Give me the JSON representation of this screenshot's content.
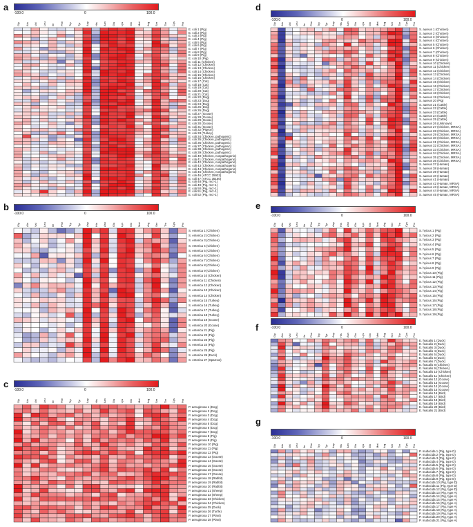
{
  "colorbar": {
    "min": "-100.0",
    "mid": "0",
    "max": "100.0",
    "low_color": "#2b2f96",
    "mid_color": "#ffffff",
    "high_color": "#e41a1c"
  },
  "panels": [
    {
      "label": "a",
      "columns": [
        "Gly",
        "Ala",
        "Val",
        "Leu",
        "Ile",
        "Phe",
        "Trp",
        "Tyr",
        "Asp",
        "His",
        "Asn",
        "Glu",
        "Lys",
        "Gln",
        "Met",
        "Arg",
        "Ser",
        "Thr",
        "Cys",
        "Pro"
      ],
      "rows": [
        "E. coli 1 (Pig)",
        "E. coli 2 (Pig)",
        "E. coli 3 (Pig)",
        "E. coli 4 (Pig)",
        "E. coli 5 (Pig)",
        "E. coli 6 (Pig)",
        "E. coli 7 (Pig)",
        "E. coli 8 (Pig)",
        "E. coli 9 (Pig)",
        "E. coli 10 (Pig)",
        "E. coli 11 (Chicken)",
        "E. coli 12 (Chicken)",
        "E. coli 13 (Chicken)",
        "E. coli 14 (Chicken)",
        "E. coli 15 (Chicken)",
        "E. coli 16 (Chicken)",
        "E. coli 17 (Cat)",
        "E. coli 18 (Cat)",
        "E. coli 19 (Cat)",
        "E. coli 20 (Cat)",
        "E. coli 21 (Cat)",
        "E. coli 22 (Dog)",
        "E. coli 23 (Dog)",
        "E. coli 24 (Dog)",
        "E. coli 25 (Dog)",
        "E. coli 26 (Dog)",
        "E. coli 27 (Goose)",
        "E. coli 28 (Goose)",
        "E. coli 29 (Goose)",
        "E. coli 30 (Goose)",
        "E. coli 31 (Goose)",
        "E. coli 32 (Pigeon)",
        "E. coli 33 (Turkey)",
        "E. coli 34 (Chicken, pathogenic)",
        "E. coli 35 (Chicken, pathogenic)",
        "E. coli 36 (Chicken, pathogenic)",
        "E. coli 37 (Chicken, pathogenic)",
        "E. coli 38 (Chicken, pathogenic)",
        "E. coli 39 (Chicken, pathogenic)",
        "E. coli 40 (Chicken, nonpathogenic)",
        "E. coli 41 (Chicken, nonpathogenic)",
        "E. coli 42 (Chicken, nonpathogenic)",
        "E. coli 43 (Chicken, nonpathogenic)",
        "E. coli 44 (Chicken, nonpathogenic)",
        "E. coli 45 (Chicken, nonpathogenic)",
        "E. coli 46 (ATCC 25922)",
        "E. coli 47 (ATCC 35150)",
        "E. coli 48 (Pig, mcr-1)",
        "E. coli 49 (Pig, mcr-1)",
        "E. coli 50 (Pig, mcr-1)",
        "E. coli 51 (Pig, mcr-1)",
        "E. coli 52 (Pig, mcr-1)"
      ],
      "col_means": [
        18,
        6,
        1,
        0,
        0,
        0,
        0,
        2,
        88,
        -28,
        92,
        92,
        92,
        92,
        14,
        30,
        86,
        55,
        -5,
        40
      ]
    },
    {
      "label": "b",
      "columns": [
        "Gly",
        "Ala",
        "Val",
        "Leu",
        "Ile",
        "Phe",
        "Trp",
        "Tyr",
        "Asp",
        "His",
        "Asn",
        "Glu",
        "Lys",
        "Gln",
        "Met",
        "Arg",
        "Ser",
        "Thr",
        "Cys",
        "Pro"
      ],
      "rows": [
        "S. enterica 1 (Chicken)",
        "S. enterica 2 (Chicken)",
        "S. enterica 3 (Chicken)",
        "S. enterica 4 (Chicken)",
        "S. enterica 5 (Chicken)",
        "S. enterica 6 (Chicken)",
        "S. enterica 7 (Chicken)",
        "S. enterica 8 (Chicken)",
        "S. enterica 9 (Chicken)",
        "S. enterica 10 (Chicken)",
        "S. enterica 11 (Chicken)",
        "S. enterica 12 (Chicken)",
        "S. enterica 13 (Chicken)",
        "S. enterica 14 (Chicken)",
        "S. enterica 15 (Turkey)",
        "S. enterica 16 (Turkey)",
        "S. enterica 17 (Turkey)",
        "S. enterica 18 (Turkey)",
        "S. enterica 19 (Goose)",
        "S. enterica 20 (Goose)",
        "S. enterica 21 (Pig)",
        "S. enterica 22 (Pig)",
        "S. enterica 23 (Pig)",
        "S. enterica 24 (Pig)",
        "S. enterica 25 (Pig)",
        "S. enterica 26 (Duck)",
        "S. enterica 27 (Sparrow)"
      ],
      "col_means": [
        8,
        -10,
        0,
        0,
        0,
        0,
        0,
        0,
        92,
        0,
        92,
        0,
        92,
        92,
        0,
        35,
        75,
        35,
        -45,
        20
      ]
    },
    {
      "label": "c",
      "columns": [
        "Gly",
        "Ala",
        "Val",
        "Leu",
        "Ile",
        "Phe",
        "Trp",
        "Tyr",
        "Asp",
        "His",
        "Asn",
        "Glu",
        "Lys",
        "Gln",
        "Met",
        "Arg",
        "Ser",
        "Thr",
        "Cys",
        "Pro"
      ],
      "rows": [
        "P. aeruginosa 1 (Dog)",
        "P. aeruginosa 2 (Dog)",
        "P. aeruginosa 3 (Dog)",
        "P. aeruginosa 4 (Dog)",
        "P. aeruginosa 5 (Dog)",
        "P. aeruginosa 6 (Dog)",
        "P. aeruginosa 7 (Dog)",
        "P. aeruginosa 8 (Pig)",
        "P. aeruginosa 9 (Pig)",
        "P. aeruginosa 10 (Pig)",
        "P. aeruginosa 11 (Pig)",
        "P. aeruginosa 12 (Pig)",
        "P. aeruginosa 13 (Goose)",
        "P. aeruginosa 14 (Goose)",
        "P. aeruginosa 15 (Goose)",
        "P. aeruginosa 16 (Goose)",
        "P. aeruginosa 17 (Goose)",
        "P. aeruginosa 18 (Rabbit)",
        "P. aeruginosa 19 (Rabbit)",
        "P. aeruginosa 20 (Rabbit)",
        "P. aeruginosa 21 (Sheep)",
        "P. aeruginosa 22 (Sheep)",
        "P. aeruginosa 23 (Chicken)",
        "P. aeruginosa 24 (Chicken)",
        "P. aeruginosa 25 (Duck)",
        "P. aeruginosa 26 (Turtle)",
        "P. aeruginosa 27 (Plant)",
        "P. aeruginosa 28 (Plant)"
      ],
      "col_means": [
        72,
        45,
        60,
        55,
        48,
        40,
        38,
        42,
        55,
        50,
        55,
        52,
        45,
        58,
        40,
        60,
        70,
        62,
        45,
        65
      ]
    },
    {
      "label": "d",
      "columns": [
        "Gly",
        "Ala",
        "Val",
        "Leu",
        "Ile",
        "Phe",
        "Trp",
        "Tyr",
        "Asp",
        "His",
        "Asn",
        "Glu",
        "Lys",
        "Gln",
        "Met",
        "Arg",
        "Ser",
        "Thr",
        "Cys",
        "Pro"
      ],
      "rows": [
        "S. aureus 1 (Chicken)",
        "S. aureus 2 (Chicken)",
        "S. aureus 3 (Chicken)",
        "S. aureus 4 (Chicken)",
        "S. aureus 5 (Chicken)",
        "S. aureus 6 (Chicken)",
        "S. aureus 7 (Chicken)",
        "S. aureus 8 (Chicken)",
        "S. aureus 9 (Chicken)",
        "S. aureus 10 (Chicken)",
        "S. aureus 11 (Chicken)",
        "S. aureus 12 (Chicken)",
        "S. aureus 13 (Chicken)",
        "S. aureus 14 (Chicken)",
        "S. aureus 15 (Chicken)",
        "S. aureus 16 (Chicken)",
        "S. aureus 17 (Chicken)",
        "S. aureus 18 (Chicken)",
        "S. aureus 19 (Chicken)",
        "S. aureus 20 (Pig)",
        "S. aureus 21 (Cattle)",
        "S. aureus 22 (Cattle)",
        "S. aureus 23 (Cattle)",
        "S. aureus 24 (Cattle)",
        "S. aureus 25 (Cattle)",
        "S. aureus 26 (Unknown)",
        "S. aureus 27 (Chicken, MRSA)",
        "S. aureus 28 (Chicken, MRSA)",
        "S. aureus 29 (Chicken, MRSA)",
        "S. aureus 30 (Chicken, MRSA)",
        "S. aureus 31 (Chicken, MRSA)",
        "S. aureus 32 (Chicken, MRSA)",
        "S. aureus 33 (Chicken, MRSA)",
        "S. aureus 34 (Chicken, MRSA)",
        "S. aureus 35 (Chicken, MRSA)",
        "S. aureus 36 (Chicken, MRSA)",
        "S. aureus 37 (Human)",
        "S. aureus 38 (Human)",
        "S. aureus 39 (Human)",
        "S. aureus 40 (Human)",
        "S. aureus 41 (Human)",
        "S. aureus 42 (Human, MRSA)",
        "S. aureus 43 (Human, MRSA)",
        "S. aureus 44 (Human, MRSA)",
        "S. aureus 45 (Human, MRSA)"
      ],
      "col_means": [
        55,
        -88,
        2,
        0,
        0,
        0,
        0,
        8,
        30,
        6,
        60,
        35,
        6,
        50,
        2,
        35,
        80,
        92,
        -30,
        55
      ]
    },
    {
      "label": "e",
      "columns": [
        "Gly",
        "Ala",
        "Val",
        "Leu",
        "Ile",
        "Phe",
        "Trp",
        "Tyr",
        "Asp",
        "His",
        "Asn",
        "Glu",
        "Lys",
        "Gln",
        "Met",
        "Arg",
        "Ser",
        "Thr",
        "Cys",
        "Pro"
      ],
      "rows": [
        "S. hyicus 1 (Pig)",
        "S. hyicus 2 (Pig)",
        "S. hyicus 3 (Pig)",
        "S. hyicus 4 (Pig)",
        "S. hyicus 5 (Pig)",
        "S. hyicus 6 (Pig)",
        "S. hyicus 7 (Pig)",
        "S. hyicus 8 (Pig)",
        "S. hyicus 9 (Pig)",
        "S. hyicus 10 (Pig)",
        "S. hyicus 11 (Pig)",
        "S. hyicus 12 (Pig)",
        "S. hyicus 13 (Pig)",
        "S. hyicus 14 (Pig)",
        "S. hyicus 15 (Pig)",
        "S. hyicus 16 (Pig)",
        "S. hyicus 17 (Pig)",
        "S. hyicus 18 (Pig)",
        "S. hyicus 19 (Pig)"
      ],
      "col_means": [
        70,
        -70,
        10,
        5,
        10,
        15,
        5,
        20,
        40,
        30,
        70,
        40,
        20,
        70,
        10,
        80,
        90,
        70,
        20,
        40
      ]
    },
    {
      "label": "f",
      "columns": [
        "Gly",
        "Ala",
        "Val",
        "Leu",
        "Ile",
        "Phe",
        "Trp",
        "Tyr",
        "Asp",
        "His",
        "Asn",
        "Glu",
        "Lys",
        "Gln",
        "Met",
        "Arg",
        "Ser",
        "Thr",
        "Cys",
        "Pro"
      ],
      "rows": [
        "E. feacalis 1 (Duck)",
        "E. feacalis 2 (Duck)",
        "E. feacalis 3 (Duck)",
        "E. feacalis 4 (Duck)",
        "E. feacalis 5 (Duck)",
        "E. feacalis 6 (Duck)",
        "E. feacalis 7 (Duck)",
        "E. feacalis 8 (Chicken)",
        "E. feacalis 9 (Chicken)",
        "E. feacalis 10 (Chicken)",
        "E. feacalis 11 (Chicken)",
        "E. feacalis 12 (Goose)",
        "E. feacalis 13 (Goose)",
        "E. feacalis 14 (Goose)",
        "E. feacalis 15 (Goose)",
        "E. feacalis 16 (Bird)",
        "E. feacalis 17 (Bird)",
        "E. feacalis 18 (Bird)",
        "E. feacalis 19 (Bird)",
        "E. feacalis 20 (Bird)",
        "E. feacalis 21 (Bird)"
      ],
      "col_means": [
        -30,
        75,
        10,
        5,
        5,
        10,
        5,
        80,
        20,
        30,
        50,
        30,
        10,
        50,
        10,
        50,
        60,
        30,
        10,
        20
      ]
    },
    {
      "label": "g",
      "columns": [
        "Gly",
        "Ala",
        "Val",
        "Leu",
        "Ile",
        "Phe",
        "Trp",
        "Tyr",
        "Asp",
        "His",
        "Asn",
        "Glu",
        "Lys",
        "Gln",
        "Met",
        "Arg",
        "Ser",
        "Thr",
        "Cys",
        "Pro"
      ],
      "rows": [
        "P. multocida 1 (Pig, type D)",
        "P. multocida 2 (Pig, type D)",
        "P. multocida 3 (Pig, type D)",
        "P. multocida 4 (Pig, type D)",
        "P. multocida 5 (Pig, type D)",
        "P. multocida 6 (Pig, type D)",
        "P. multocida 7 (Pig, type D)",
        "P. multocida 8 (Pig, type D)",
        "P. multocida 9 (Pig, type D)",
        "P. multocida 10 (Pig, type D)",
        "P. multocida 11 (Pig, type D)",
        "P. multocida 12 (Pig, type D)",
        "P. multocida 13 (Pig, type A)",
        "P. multocida 14 (Pig, type A)",
        "P. multocida 15 (Pig, type A)",
        "P. multocida 16 (Pig, type A)",
        "P. multocida 17 (Pig, type A)",
        "P. multocida 18 (Pig, type A)",
        "P. multocida 19 (Pig, type A)",
        "P. multocida 20 (Pig, type A)",
        "P. multocida 21 (Pig, type A)"
      ],
      "col_means": [
        -25,
        20,
        -10,
        5,
        0,
        5,
        0,
        -5,
        -10,
        0,
        0,
        -20,
        -25,
        -10,
        0,
        -5,
        -10,
        -5,
        5,
        -5
      ]
    }
  ]
}
